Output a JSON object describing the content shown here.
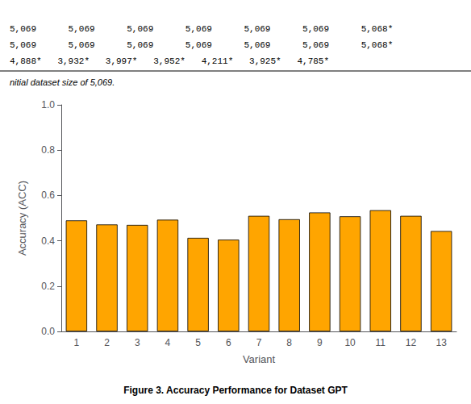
{
  "chart_data": {
    "type": "bar",
    "title": "Figure 3. Accuracy Performance for Dataset GPT",
    "subtitle": "nitial dataset size of 5,069.",
    "annotations": [
      "5,069      5,069      5,069      5,069      5,069      5,069      5,068*",
      "5,069      5,069      5,069      5,069      5,069      5,069      5,068*",
      "4,888*   3,932*   3,997*   3,952*   4,211*   3,925*   4,785*"
    ],
    "x_label": "Variant",
    "y_label": "Accuracy (ACC)",
    "categories": [
      "1",
      "2",
      "3",
      "4",
      "5",
      "6",
      "7",
      "8",
      "9",
      "10",
      "11",
      "12",
      "13"
    ],
    "values": [
      0.49,
      0.472,
      0.47,
      0.493,
      0.413,
      0.405,
      0.51,
      0.495,
      0.525,
      0.508,
      0.535,
      0.51,
      0.443
    ],
    "color": "#FFA500",
    "ylim": [
      0.0,
      1.0
    ],
    "yticks": [
      {
        "value": 0.0,
        "label": "0.0"
      },
      0.2,
      0.4,
      0.6,
      0.8,
      {
        "value": 1.0,
        "label": "1.0"
      }
    ],
    "grid": false
  }
}
